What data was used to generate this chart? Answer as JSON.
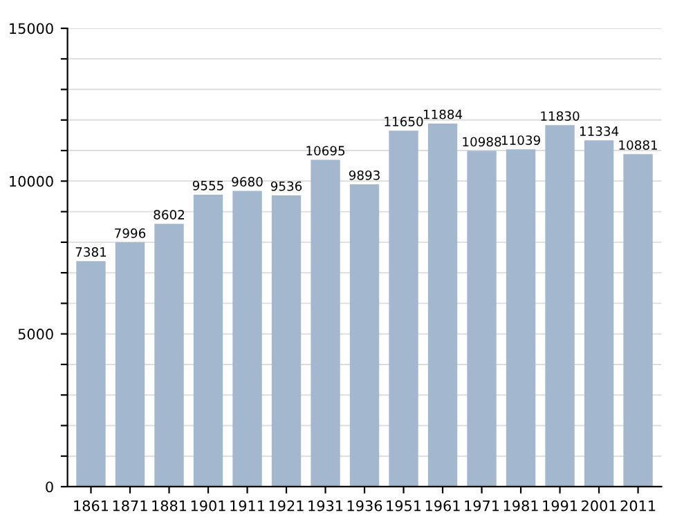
{
  "chart_data": {
    "type": "bar",
    "categories": [
      "1861",
      "1871",
      "1881",
      "1901",
      "1911",
      "1921",
      "1931",
      "1936",
      "1951",
      "1961",
      "1971",
      "1981",
      "1991",
      "2001",
      "2011"
    ],
    "values": [
      7381,
      7996,
      8602,
      9555,
      9680,
      9536,
      10695,
      9893,
      11650,
      11884,
      10988,
      11039,
      11830,
      11334,
      10881
    ],
    "color": "#a3b7cf",
    "ylim": [
      0,
      15000
    ],
    "yticks": [
      0,
      {
        "value": 1000,
        "label": null
      },
      {
        "value": 2000,
        "label": null
      },
      {
        "value": 3000,
        "label": null
      },
      {
        "value": 4000,
        "label": null
      },
      5000,
      {
        "value": 6000,
        "label": null
      },
      {
        "value": 7000,
        "label": null
      },
      {
        "value": 8000,
        "label": null
      },
      {
        "value": 9000,
        "label": null
      },
      10000,
      {
        "value": 11000,
        "label": null
      },
      {
        "value": 12000,
        "label": null
      },
      {
        "value": 13000,
        "label": null
      },
      {
        "value": 14000,
        "label": null
      },
      15000
    ],
    "grid": "y",
    "data_labels": true
  }
}
